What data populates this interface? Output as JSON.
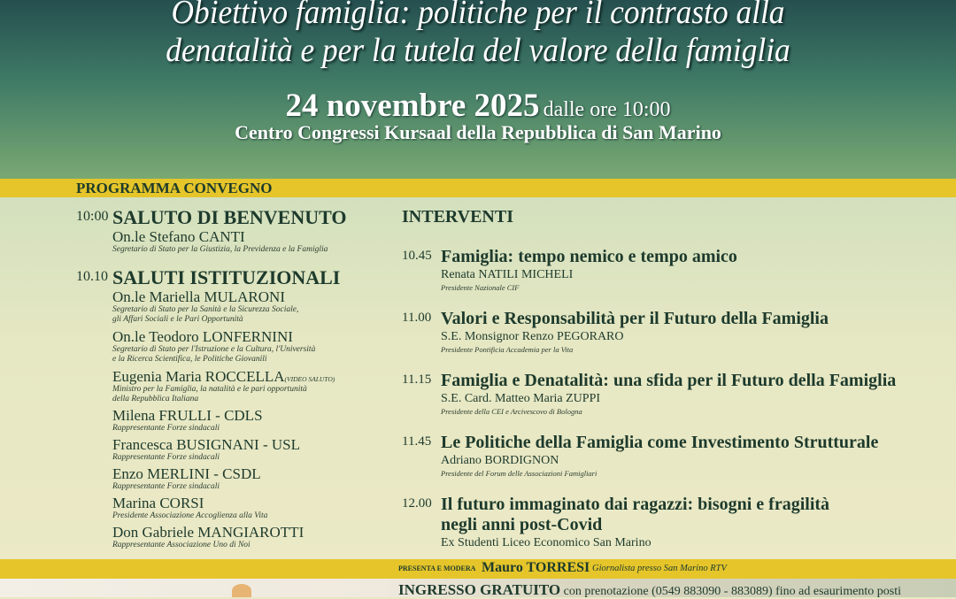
{
  "header": {
    "title_line1": "Obiettivo famiglia: politiche per il contrasto alla",
    "title_line2": "denatalità e per la tutela del valore della famiglia",
    "date": "24 novembre 2025",
    "time": "dalle ore 10:00",
    "venue": "Centro Congressi Kursaal della Repubblica di San Marino"
  },
  "programma": {
    "label": "PROGRAMMA CONVEGNO"
  },
  "left": {
    "s1": {
      "time": "10:00",
      "title": "SALUTO DI BENVENUTO",
      "name": "On.le Stefano CANTI",
      "role": "Segretario di Stato per la Giustizia, la Previdenza e la Famiglia"
    },
    "s2": {
      "time": "10.10",
      "title": "SALUTI ISTITUZIONALI"
    },
    "speakers": [
      {
        "name": "On.le Mariella MULARONI",
        "role1": "Segretario di Stato per la Sanità e la Sicurezza Sociale,",
        "role2": "gli Affari Sociali e le Pari Opportunità"
      },
      {
        "name": "On.le Teodoro LONFERNINI",
        "role1": "Segretario di Stato per l'Istruzione e la Cultura, l'Università",
        "role2": "e la Ricerca Scientifica, le Politiche Giovanili"
      },
      {
        "name": "Eugenia Maria ROCCELLA",
        "note": "(VIDEO SALUTO)",
        "role1": "Ministro per la Famiglia, la natalità e le pari opportunità",
        "role2": "della Repubblica Italiana"
      },
      {
        "name": "Milena FRULLI - CDLS",
        "role1": "Rappresentante Forze sindacali"
      },
      {
        "name": "Francesca BUSIGNANI - USL",
        "role1": "Rappresentante Forze sindacali"
      },
      {
        "name": "Enzo MERLINI - CSDL",
        "role1": "Rappresentante Forze sindacali"
      },
      {
        "name": "Marina CORSI",
        "role1": "Presidente Associazione Accoglienza alla Vita"
      },
      {
        "name": "Don Gabriele MANGIAROTTI",
        "role1": "Rappresentante Associazione Uno di Noi"
      }
    ]
  },
  "right": {
    "heading": "INTERVENTI",
    "talks": [
      {
        "time": "10.45",
        "title": "Famiglia: tempo nemico e tempo amico",
        "name": "Renata NATILI MICHELI",
        "role": "Presidente Nazionale CIF"
      },
      {
        "time": "11.00",
        "title": "Valori e Responsabilità per il Futuro della Famiglia",
        "name": "S.E. Monsignor Renzo PEGORARO",
        "role": "Presidente Pontificia Accademia per la Vita"
      },
      {
        "time": "11.15",
        "title": "Famiglia e Denatalità: una sfida per il Futuro della Famiglia",
        "name": "S.E. Card. Matteo Maria ZUPPI",
        "role": "Presidente della CEI e Arcivescovo di Bologna"
      },
      {
        "time": "11.45",
        "title": "Le Politiche della Famiglia come Investimento Strutturale",
        "name": "Adriano BORDIGNON",
        "role": "Presidente del Forum delle Associazioni Famigliari"
      },
      {
        "time": "12.00",
        "title": "Il futuro immaginato dai ragazzi: bisogni e fragilità",
        "title2": "negli anni post-Covid",
        "name": "Ex Studenti Liceo Economico San Marino"
      }
    ]
  },
  "moderator": {
    "prefix": "PRESENTA E MODERA",
    "name": "Mauro TORRESI",
    "role": "Giornalista presso San Marino RTV"
  },
  "footer": {
    "entry": "INGRESSO GRATUITO",
    "details": "con prenotazione (0549 883090 - 883089) fino ad esaurimento posti"
  },
  "colors": {
    "header_top": "#254f4f",
    "header_bottom": "#79a872",
    "band": "#e5c52a",
    "text": "#1d3a2c"
  }
}
